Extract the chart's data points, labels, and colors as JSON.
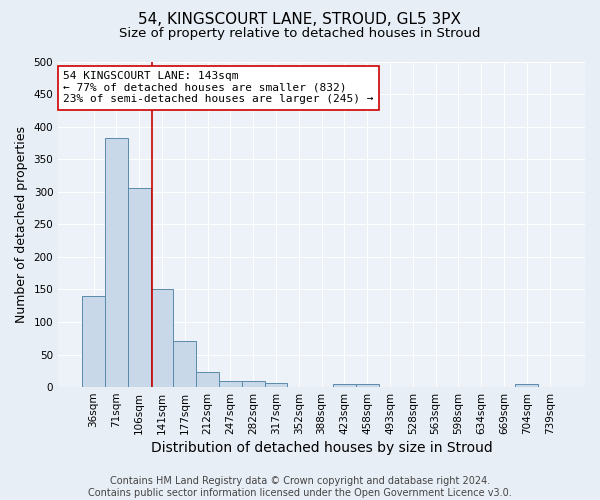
{
  "title1": "54, KINGSCOURT LANE, STROUD, GL5 3PX",
  "title2": "Size of property relative to detached houses in Stroud",
  "xlabel": "Distribution of detached houses by size in Stroud",
  "ylabel": "Number of detached properties",
  "footer1": "Contains HM Land Registry data © Crown copyright and database right 2024.",
  "footer2": "Contains public sector information licensed under the Open Government Licence v3.0.",
  "bar_labels": [
    "36sqm",
    "71sqm",
    "106sqm",
    "141sqm",
    "177sqm",
    "212sqm",
    "247sqm",
    "282sqm",
    "317sqm",
    "352sqm",
    "388sqm",
    "423sqm",
    "458sqm",
    "493sqm",
    "528sqm",
    "563sqm",
    "598sqm",
    "634sqm",
    "669sqm",
    "704sqm",
    "739sqm"
  ],
  "bar_values": [
    140,
    383,
    305,
    150,
    71,
    23,
    10,
    9,
    7,
    0,
    0,
    4,
    4,
    0,
    0,
    0,
    0,
    0,
    0,
    4,
    0
  ],
  "bar_color": "#c8d8e8",
  "bar_edge_color": "#5a8aaa",
  "property_line_color": "#cc0000",
  "annotation_line1": "54 KINGSCOURT LANE: 143sqm",
  "annotation_line2": "← 77% of detached houses are smaller (832)",
  "annotation_line3": "23% of semi-detached houses are larger (245) →",
  "annotation_box_color": "#ffffff",
  "annotation_box_edge": "#cc0000",
  "ylim": [
    0,
    500
  ],
  "yticks": [
    0,
    50,
    100,
    150,
    200,
    250,
    300,
    350,
    400,
    450,
    500
  ],
  "bg_color": "#e8eef6",
  "plot_bg_color": "#edf2f8",
  "grid_color": "#ffffff",
  "title1_fontsize": 11,
  "title2_fontsize": 9.5,
  "xlabel_fontsize": 10,
  "ylabel_fontsize": 9,
  "tick_fontsize": 7.5,
  "annotation_fontsize": 8,
  "footer_fontsize": 7
}
